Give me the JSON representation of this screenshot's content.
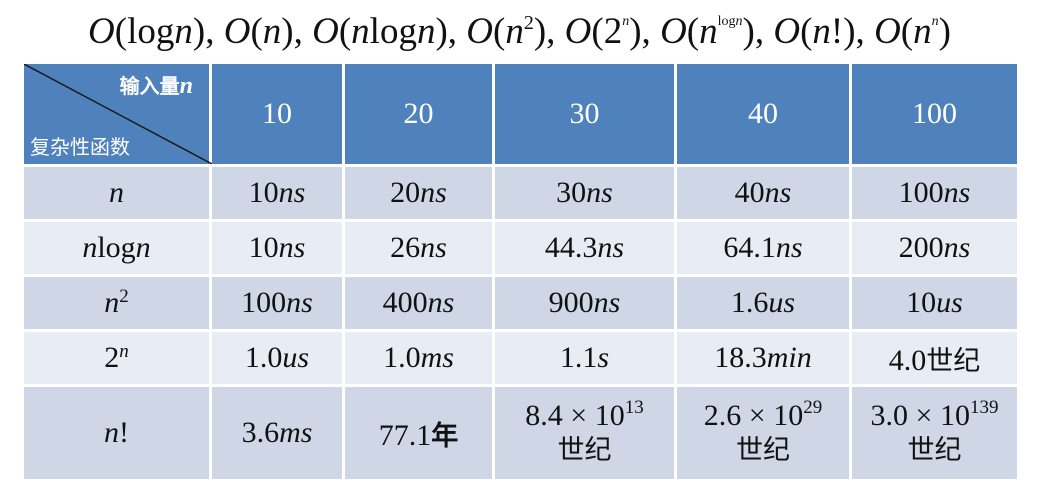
{
  "title": {
    "prefix": "O",
    "items": [
      "logn",
      "n",
      "nlogn",
      "n²",
      "2ⁿ",
      "n^logn",
      "n!",
      "nⁿ"
    ]
  },
  "header": {
    "input_label": "输入量",
    "input_var": "n",
    "func_label": "复杂性函数",
    "columns": [
      "10",
      "20",
      "30",
      "40",
      "100"
    ]
  },
  "rows": [
    {
      "label": "n",
      "cells": [
        {
          "num": "10",
          "unit": "ns"
        },
        {
          "num": "20",
          "unit": "ns"
        },
        {
          "num": "30",
          "unit": "ns"
        },
        {
          "num": "40",
          "unit": "ns"
        },
        {
          "num": "100",
          "unit": "ns"
        }
      ]
    },
    {
      "label": "nlogn",
      "cells": [
        {
          "num": "10",
          "unit": "ns"
        },
        {
          "num": "26",
          "unit": "ns"
        },
        {
          "num": "44.3",
          "unit": "ns"
        },
        {
          "num": "64.1",
          "unit": "ns"
        },
        {
          "num": "200",
          "unit": "ns"
        }
      ]
    },
    {
      "label": "n2",
      "cells": [
        {
          "num": "100",
          "unit": "ns"
        },
        {
          "num": "400",
          "unit": "ns"
        },
        {
          "num": "900",
          "unit": "ns"
        },
        {
          "num": "1.6",
          "unit": "us"
        },
        {
          "num": "10",
          "unit": "us"
        }
      ]
    },
    {
      "label": "2n",
      "cells": [
        {
          "num": "1.0",
          "unit": "us"
        },
        {
          "num": "1.0",
          "unit": "ms"
        },
        {
          "num": "1.1",
          "unit": "s"
        },
        {
          "num": "18.3",
          "unit": "min"
        },
        {
          "num": "4.0",
          "unit": "世纪"
        }
      ]
    },
    {
      "label": "n!",
      "cells": [
        {
          "num": "3.6",
          "unit": "ms"
        },
        {
          "num": "77.1",
          "unit": "年"
        },
        {
          "num": "8.4 × 10",
          "exp": "13",
          "unit": "世纪"
        },
        {
          "num": "2.6 × 10",
          "exp": "29",
          "unit": "世纪"
        },
        {
          "num": "3.0 × 10",
          "exp": "139",
          "unit": "世纪"
        }
      ]
    }
  ]
}
